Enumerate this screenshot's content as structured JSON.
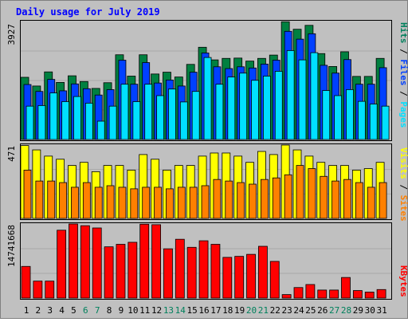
{
  "chart_data": {
    "type": "bar",
    "title": "Daily usage for July 2019",
    "categories": [
      "1",
      "2",
      "3",
      "4",
      "5",
      "6",
      "7",
      "8",
      "9",
      "10",
      "11",
      "12",
      "13",
      "14",
      "15",
      "16",
      "17",
      "18",
      "19",
      "20",
      "21",
      "22",
      "23",
      "24",
      "25",
      "26",
      "27",
      "28",
      "29",
      "30",
      "31"
    ],
    "weekend_days": [
      "6",
      "7",
      "13",
      "14",
      "20",
      "21",
      "27",
      "28"
    ],
    "panels": [
      {
        "name": "hits-files-pages",
        "max_label": "3927",
        "ylim": [
          0,
          3927
        ],
        "legend": [
          "Pages",
          "Files",
          "Hits"
        ],
        "series": [
          {
            "name": "Hits",
            "color": "#008040",
            "values": [
              2070,
              1780,
              2250,
              1900,
              2120,
              1930,
              1700,
              1890,
              2820,
              2110,
              2820,
              2180,
              2240,
              2080,
              2500,
              3070,
              2650,
              2700,
              2710,
              2610,
              2700,
              2810,
              3920,
              3670,
              3800,
              2860,
              2430,
              2920,
              2100,
              2100,
              2700
            ]
          },
          {
            "name": "Files",
            "color": "#0040ff",
            "values": [
              1830,
              1600,
              2000,
              1620,
              1850,
              1690,
              1480,
              1660,
              2640,
              1840,
              2560,
              1880,
              1980,
              1780,
              2240,
              2880,
              2420,
              2360,
              2420,
              2380,
              2510,
              2640,
              3600,
              3340,
              3520,
              2470,
              2210,
              2660,
              1840,
              1840,
              2390
            ]
          },
          {
            "name": "Pages",
            "color": "#00e0ff",
            "values": [
              1110,
              1130,
              1550,
              1260,
              1430,
              1210,
              610,
              1110,
              1840,
              1260,
              1840,
              1460,
              1680,
              1250,
              1600,
              2730,
              1840,
              2080,
              2210,
              1970,
              2110,
              2270,
              2960,
              2650,
              2890,
              1630,
              1460,
              1660,
              1270,
              1180,
              1110
            ]
          }
        ]
      },
      {
        "name": "visits-sites",
        "max_label": "471",
        "ylim": [
          0,
          471
        ],
        "legend": [
          "Sites",
          "Visits"
        ],
        "series": [
          {
            "name": "Visits",
            "color": "#ffff00",
            "values": [
              468,
              440,
              400,
              380,
              340,
              360,
              300,
              340,
              340,
              310,
              410,
              380,
              310,
              340,
              340,
              400,
              420,
              420,
              400,
              360,
              430,
              410,
              471,
              440,
              400,
              360,
              340,
              340,
              310,
              320,
              360
            ]
          },
          {
            "name": "Sites",
            "color": "#ff8000",
            "values": [
              310,
              240,
              240,
              230,
              200,
              230,
              200,
              210,
              200,
              190,
              200,
              200,
              190,
              200,
              200,
              210,
              250,
              240,
              230,
              220,
              250,
              260,
              280,
              340,
              320,
              270,
              240,
              250,
              230,
              200,
              230
            ]
          }
        ]
      },
      {
        "name": "kbytes",
        "max_label": "14741668",
        "ylim": [
          0,
          14741668
        ],
        "legend": [
          "KBytes"
        ],
        "series": [
          {
            "name": "KBytes",
            "color": "#ff0000",
            "values": [
              6300000,
              3380000,
              3380000,
              13500000,
              14741668,
              14400000,
              13950000,
              10200000,
              10700000,
              11100000,
              14700000,
              14600000,
              9800000,
              11700000,
              10100000,
              11400000,
              10700000,
              8100000,
              8300000,
              8700000,
              10300000,
              7300000,
              700000,
              2100000,
              2700000,
              1600000,
              1600000,
              4100000,
              1500000,
              1200000,
              1700000
            ]
          }
        ]
      }
    ]
  },
  "colors": {
    "background": "#c0c0c0",
    "plot_background": "#c0c0c0",
    "title": "#0000ff",
    "weekday_label": "#000000",
    "weekend_label": "#00805c",
    "sep_line": "#808080",
    "bar_stroke": "#000000"
  }
}
